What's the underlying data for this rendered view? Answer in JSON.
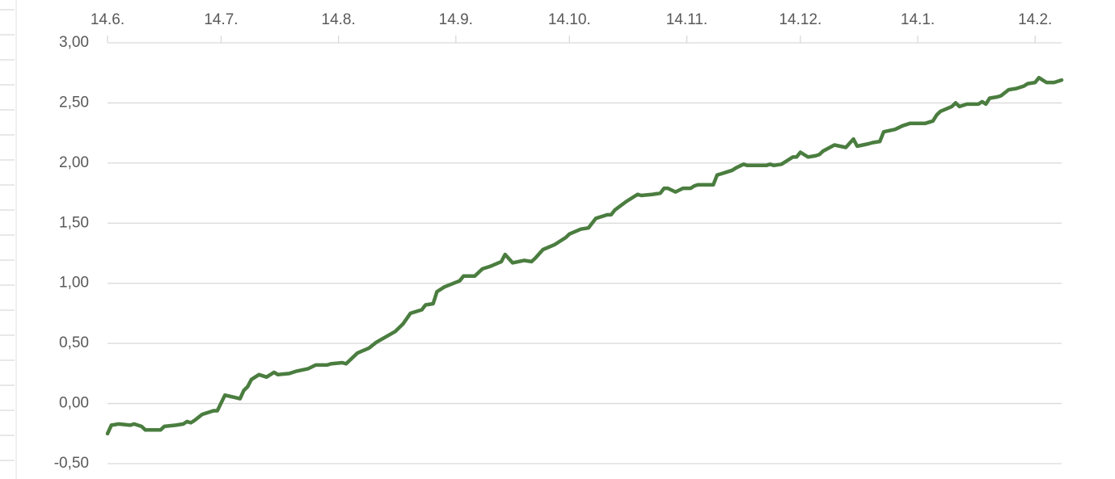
{
  "chart_data": {
    "type": "line",
    "x": [
      0,
      1,
      3,
      6,
      7,
      9,
      10,
      14,
      15,
      18,
      20,
      21,
      22,
      23,
      25,
      27,
      28,
      29,
      31,
      35,
      36,
      37,
      38,
      40,
      42,
      44,
      45,
      48,
      49,
      50,
      53,
      55,
      58,
      59,
      62,
      63,
      66,
      69,
      71,
      76,
      78,
      80,
      83,
      84,
      86,
      87,
      89,
      93,
      94,
      97,
      99,
      101,
      104,
      105,
      107,
      110,
      112,
      113,
      115,
      118,
      120,
      121,
      122,
      125,
      127,
      129,
      132,
      133,
      134,
      137,
      140,
      141,
      144,
      146,
      147,
      148,
      150,
      152,
      154,
      155,
      156,
      160,
      161,
      163,
      165,
      166,
      168,
      169,
      174,
      175,
      176,
      178,
      180,
      181,
      182,
      183,
      185,
      187,
      188,
      189,
      192,
      195,
      197,
      198,
      201,
      202,
      204,
      205,
      208,
      210,
      212,
      216,
      218,
      219,
      220,
      223,
      224,
      225,
      227,
      230,
      231,
      232,
      233,
      235,
      236,
      238,
      240,
      242,
      243,
      245,
      246,
      248,
      250,
      252
    ],
    "series": [
      {
        "color": "#4a7d3f",
        "values": [
          -0.25,
          -0.18,
          -0.17,
          -0.18,
          -0.17,
          -0.19,
          -0.22,
          -0.22,
          -0.19,
          -0.18,
          -0.17,
          -0.15,
          -0.16,
          -0.14,
          -0.09,
          -0.07,
          -0.06,
          -0.06,
          0.07,
          0.04,
          0.11,
          0.14,
          0.2,
          0.24,
          0.22,
          0.26,
          0.24,
          0.25,
          0.26,
          0.27,
          0.29,
          0.32,
          0.32,
          0.33,
          0.34,
          0.33,
          0.42,
          0.46,
          0.51,
          0.6,
          0.66,
          0.75,
          0.78,
          0.82,
          0.83,
          0.93,
          0.97,
          1.02,
          1.06,
          1.06,
          1.12,
          1.14,
          1.18,
          1.24,
          1.17,
          1.19,
          1.18,
          1.21,
          1.28,
          1.32,
          1.36,
          1.38,
          1.41,
          1.45,
          1.46,
          1.54,
          1.57,
          1.57,
          1.61,
          1.68,
          1.74,
          1.73,
          1.74,
          1.75,
          1.79,
          1.79,
          1.76,
          1.79,
          1.79,
          1.81,
          1.82,
          1.82,
          1.9,
          1.92,
          1.94,
          1.96,
          1.99,
          1.98,
          1.98,
          1.99,
          1.98,
          1.99,
          2.03,
          2.05,
          2.05,
          2.09,
          2.05,
          2.06,
          2.07,
          2.1,
          2.15,
          2.13,
          2.2,
          2.14,
          2.16,
          2.17,
          2.18,
          2.26,
          2.28,
          2.31,
          2.33,
          2.33,
          2.35,
          2.4,
          2.43,
          2.47,
          2.5,
          2.47,
          2.49,
          2.49,
          2.51,
          2.49,
          2.54,
          2.55,
          2.56,
          2.61,
          2.62,
          2.64,
          2.66,
          2.67,
          2.71,
          2.67,
          2.67,
          2.69
        ]
      }
    ],
    "xlim": [
      0,
      252
    ],
    "xticks": [
      {
        "value": 0,
        "label": "14.6."
      },
      {
        "value": 30,
        "label": "14.7."
      },
      {
        "value": 61,
        "label": "14.8."
      },
      {
        "value": 92,
        "label": "14.9."
      },
      {
        "value": 122,
        "label": "14.10."
      },
      {
        "value": 153,
        "label": "14.11."
      },
      {
        "value": 183,
        "label": "14.12."
      },
      {
        "value": 214,
        "label": "14.1."
      },
      {
        "value": 245,
        "label": "14.2."
      }
    ],
    "ylim": [
      -0.5,
      3
    ],
    "yticks": [
      {
        "value": -0.5,
        "label": "-0,50"
      },
      {
        "value": 0,
        "label": "0,00"
      },
      {
        "value": 0.5,
        "label": "0,50"
      },
      {
        "value": 1,
        "label": "1,00"
      },
      {
        "value": 1.5,
        "label": "1,50"
      },
      {
        "value": 2,
        "label": "2,00"
      },
      {
        "value": 2.5,
        "label": "2,50"
      },
      {
        "value": 3,
        "label": "3,00"
      }
    ],
    "grid": true
  }
}
